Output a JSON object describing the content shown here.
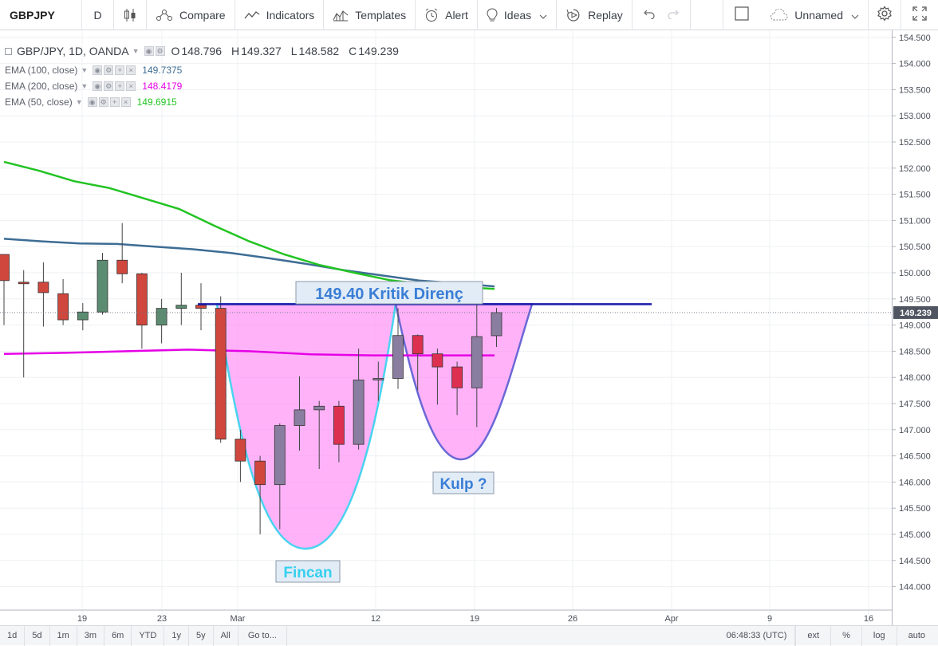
{
  "toolbar": {
    "symbol": "GBPJPY",
    "interval": "D",
    "compare": "Compare",
    "indicators": "Indicators",
    "templates": "Templates",
    "alert": "Alert",
    "ideas": "Ideas",
    "replay": "Replay",
    "layout_name": "Unnamed"
  },
  "legend": {
    "title": "GBP/JPY, 1D, OANDA",
    "open_label": "O",
    "open": "148.796",
    "high_label": "H",
    "high": "149.327",
    "low_label": "L",
    "low": "148.582",
    "close_label": "C",
    "close": "149.239",
    "indicators": [
      {
        "name": "EMA (100, close)",
        "value": "149.7375",
        "color": "#3d6d94"
      },
      {
        "name": "EMA (200, close)",
        "value": "148.4179",
        "color": "#e600e6"
      },
      {
        "name": "EMA (50, close)",
        "value": "149.6915",
        "color": "#22c322"
      }
    ]
  },
  "annotations": {
    "resistance_label": "149.40 Kritik Direnç",
    "cup_label": "Fincan",
    "handle_label": "Kulp ?"
  },
  "colors": {
    "up_candle": "#5b8c71",
    "down_candle": "#d0473e",
    "drawn_candle": "#8a7ea0",
    "drawn_candle_dark": "#dd3050",
    "cup_fill": "#ff88f5",
    "cup_outline": "#49d3f0",
    "handle_outline": "#6a68d6",
    "resistance_line": "#1a1aa8",
    "ema100": "#3d6d94",
    "ema200": "#e600e6",
    "ema50": "#22c322",
    "last_price_bg": "#4f5561"
  },
  "price_scale": {
    "ticks": [
      "154.500",
      "154.000",
      "153.500",
      "153.000",
      "152.500",
      "152.000",
      "151.500",
      "151.000",
      "150.500",
      "150.000",
      "149.500",
      "149.000",
      "148.500",
      "148.000",
      "147.500",
      "147.000",
      "146.500",
      "146.000",
      "145.500",
      "145.000",
      "144.500",
      "144.000"
    ],
    "last_price": "149.239"
  },
  "time_scale": {
    "ticks": [
      "19",
      "23",
      "Mar",
      "12",
      "19",
      "26",
      "Apr",
      "9",
      "16"
    ]
  },
  "chart_data": {
    "type": "candlestick",
    "symbol": "GBP/JPY",
    "timeframe": "1D",
    "source": "OANDA",
    "candles": [
      {
        "o": 149.85,
        "h": 150.28,
        "l": 149.0,
        "c": 150.35,
        "dir": "down"
      },
      {
        "o": 149.82,
        "h": 150.05,
        "l": 148.0,
        "c": 149.79,
        "dir": "down"
      },
      {
        "o": 149.82,
        "h": 150.2,
        "l": 148.97,
        "c": 149.62,
        "dir": "down"
      },
      {
        "o": 149.6,
        "h": 149.88,
        "l": 149.0,
        "c": 149.1,
        "dir": "down"
      },
      {
        "o": 149.1,
        "h": 149.42,
        "l": 148.9,
        "c": 149.25,
        "dir": "up"
      },
      {
        "o": 149.25,
        "h": 150.38,
        "l": 149.2,
        "c": 150.24,
        "dir": "up"
      },
      {
        "o": 150.24,
        "h": 150.95,
        "l": 149.8,
        "c": 149.98,
        "dir": "down"
      },
      {
        "o": 149.98,
        "h": 150.0,
        "l": 148.55,
        "c": 149.0,
        "dir": "down"
      },
      {
        "o": 149.0,
        "h": 149.5,
        "l": 148.65,
        "c": 149.32,
        "dir": "up"
      },
      {
        "o": 149.32,
        "h": 150.0,
        "l": 149.0,
        "c": 149.38,
        "dir": "up"
      },
      {
        "o": 149.38,
        "h": 149.8,
        "l": 148.9,
        "c": 149.32,
        "dir": "down"
      },
      {
        "o": 149.32,
        "h": 149.55,
        "l": 146.75,
        "c": 146.82,
        "dir": "down"
      },
      {
        "o": 146.82,
        "h": 147.0,
        "l": 146.0,
        "c": 146.4,
        "dir": "down"
      },
      {
        "o": 146.4,
        "h": 146.5,
        "l": 145.0,
        "c": 145.95,
        "dir": "down"
      },
      {
        "o": 145.95,
        "h": 147.12,
        "l": 145.1,
        "c": 147.08,
        "dir": "up"
      },
      {
        "o": 147.08,
        "h": 148.02,
        "l": 146.6,
        "c": 147.38,
        "dir": "up"
      },
      {
        "o": 147.38,
        "h": 147.55,
        "l": 146.25,
        "c": 147.45,
        "dir": "up"
      },
      {
        "o": 147.45,
        "h": 147.55,
        "l": 146.38,
        "c": 146.72,
        "dir": "down"
      },
      {
        "o": 146.72,
        "h": 148.55,
        "l": 146.62,
        "c": 147.95,
        "dir": "up"
      },
      {
        "o": 147.95,
        "h": 148.3,
        "l": 147.55,
        "c": 147.98,
        "dir": "up"
      },
      {
        "o": 147.98,
        "h": 149.32,
        "l": 147.78,
        "c": 148.8,
        "dir": "up"
      },
      {
        "o": 148.8,
        "h": 148.82,
        "l": 147.75,
        "c": 148.45,
        "dir": "down"
      },
      {
        "o": 148.45,
        "h": 148.55,
        "l": 147.48,
        "c": 148.2,
        "dir": "down"
      },
      {
        "o": 148.2,
        "h": 148.3,
        "l": 147.28,
        "c": 147.8,
        "dir": "down"
      },
      {
        "o": 147.8,
        "h": 149.65,
        "l": 147.05,
        "c": 148.78,
        "dir": "up"
      },
      {
        "o": 148.796,
        "h": 149.327,
        "l": 148.582,
        "c": 149.239,
        "dir": "up"
      }
    ],
    "ema50": [
      152.12,
      151.95,
      151.75,
      151.62,
      151.42,
      151.22,
      150.9,
      150.6,
      150.35,
      150.15,
      150.0,
      149.86,
      149.78,
      149.73,
      149.69
    ],
    "ema100": [
      150.65,
      150.6,
      150.56,
      150.55,
      150.5,
      150.45,
      150.38,
      150.28,
      150.17,
      150.05,
      149.95,
      149.85,
      149.8,
      149.74
    ],
    "ema200": [
      148.45,
      148.47,
      148.5,
      148.53,
      148.5,
      148.44,
      148.42,
      148.42,
      148.42
    ],
    "resistance": 149.4,
    "y_range": [
      143.7,
      154.6
    ]
  },
  "bottombar": {
    "ranges": [
      "1d",
      "5d",
      "1m",
      "3m",
      "6m",
      "YTD",
      "1y",
      "5y",
      "All"
    ],
    "goto": "Go to...",
    "clock": "06:48:33 (UTC)",
    "ext": "ext",
    "percent": "%",
    "log": "log",
    "auto": "auto"
  }
}
